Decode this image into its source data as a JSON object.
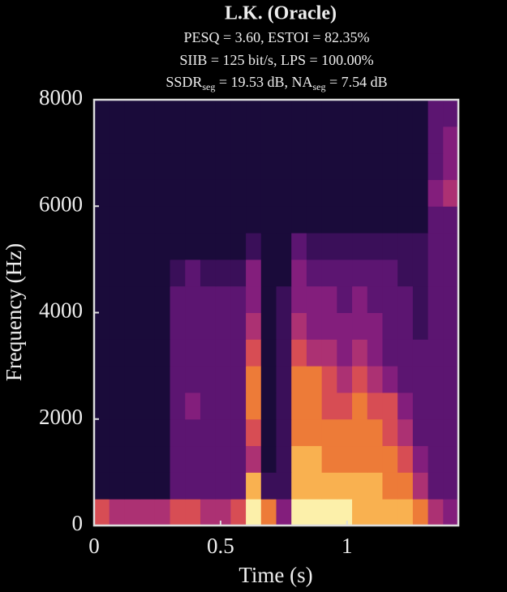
{
  "chart_data": {
    "type": "spectrogram",
    "title": "L.K.  (Oracle)",
    "subtitle_lines": [
      "PESQ  =  3.60,  ESTOI  =  82.35%",
      "SIIB  =  125  bit/s,  LPS  =  100.00%"
    ],
    "subtitle_parts": [
      "SSDR",
      "seg",
      "  =  19.53  dB,  NA",
      "seg",
      "  =  7.54  dB"
    ],
    "xlabel": "Time (s)",
    "ylabel": "Frequency (Hz)",
    "xlim": [
      0,
      1.44
    ],
    "ylim": [
      0,
      8000
    ],
    "xticks": [
      0,
      {
        "value": 0.5,
        "label": "0.5"
      },
      1
    ],
    "yticks": [
      0,
      2000,
      4000,
      6000,
      8000
    ],
    "xbins": [
      0,
      0.06,
      0.12,
      0.18,
      0.24,
      0.3,
      0.36,
      0.42,
      0.48,
      0.54,
      0.6,
      0.66,
      0.72,
      0.78,
      0.84,
      0.9,
      0.96,
      1.02,
      1.08,
      1.14,
      1.2,
      1.26,
      1.32,
      1.38,
      1.44
    ],
    "ybins": [
      0,
      500,
      1000,
      1500,
      2000,
      2500,
      3000,
      3500,
      4000,
      4500,
      5000,
      5500,
      6000,
      6500,
      7000,
      7500,
      8000
    ],
    "z": [
      [
        6,
        5,
        5,
        5,
        5,
        6,
        6,
        5,
        5,
        6,
        9,
        7,
        4,
        9,
        9,
        9,
        9,
        8,
        8,
        8,
        8,
        7,
        5,
        4
      ],
      [
        1,
        1,
        1,
        1,
        1,
        3,
        3,
        3,
        3,
        3,
        8,
        2,
        2,
        8,
        8,
        8,
        8,
        8,
        8,
        7,
        7,
        5,
        3,
        3
      ],
      [
        1,
        1,
        1,
        1,
        1,
        3,
        3,
        3,
        3,
        3,
        5,
        1,
        2,
        8,
        8,
        7,
        7,
        7,
        7,
        7,
        6,
        4,
        3,
        3
      ],
      [
        1,
        1,
        1,
        1,
        1,
        3,
        3,
        3,
        3,
        3,
        6,
        1,
        2,
        7,
        7,
        7,
        7,
        7,
        7,
        6,
        5,
        3,
        3,
        3
      ],
      [
        1,
        1,
        1,
        1,
        1,
        3,
        4,
        3,
        3,
        3,
        7,
        1,
        2,
        7,
        7,
        6,
        6,
        7,
        6,
        6,
        4,
        3,
        3,
        3
      ],
      [
        1,
        1,
        1,
        1,
        1,
        3,
        3,
        3,
        3,
        3,
        7,
        1,
        2,
        7,
        7,
        6,
        5,
        6,
        5,
        4,
        3,
        3,
        3,
        3
      ],
      [
        1,
        1,
        1,
        1,
        1,
        3,
        3,
        3,
        3,
        3,
        6,
        1,
        2,
        6,
        5,
        5,
        4,
        5,
        4,
        3,
        3,
        3,
        3,
        3
      ],
      [
        1,
        1,
        1,
        1,
        1,
        3,
        3,
        3,
        3,
        3,
        5,
        1,
        2,
        5,
        4,
        4,
        4,
        4,
        4,
        3,
        3,
        2,
        3,
        3
      ],
      [
        1,
        1,
        1,
        1,
        1,
        3,
        3,
        3,
        3,
        3,
        4,
        1,
        2,
        4,
        4,
        4,
        3,
        4,
        3,
        3,
        3,
        2,
        3,
        3
      ],
      [
        1,
        1,
        1,
        1,
        1,
        2,
        3,
        2,
        2,
        2,
        4,
        1,
        1,
        4,
        3,
        3,
        3,
        3,
        3,
        3,
        2,
        2,
        3,
        3
      ],
      [
        1,
        1,
        1,
        1,
        1,
        1,
        1,
        1,
        1,
        1,
        2,
        1,
        1,
        3,
        2,
        2,
        2,
        2,
        2,
        2,
        2,
        2,
        3,
        3
      ],
      [
        1,
        1,
        1,
        1,
        1,
        1,
        1,
        1,
        1,
        1,
        1,
        1,
        1,
        1,
        1,
        1,
        1,
        1,
        1,
        1,
        1,
        1,
        3,
        3
      ],
      [
        1,
        1,
        1,
        1,
        1,
        1,
        1,
        1,
        1,
        1,
        1,
        1,
        1,
        1,
        1,
        1,
        1,
        1,
        1,
        1,
        1,
        1,
        4,
        5
      ],
      [
        1,
        1,
        1,
        1,
        1,
        1,
        1,
        1,
        1,
        1,
        1,
        1,
        1,
        1,
        1,
        1,
        1,
        1,
        1,
        1,
        1,
        1,
        3,
        4
      ],
      [
        1,
        1,
        1,
        1,
        1,
        1,
        1,
        1,
        1,
        1,
        1,
        1,
        1,
        1,
        1,
        1,
        1,
        1,
        1,
        1,
        1,
        1,
        3,
        4
      ],
      [
        1,
        1,
        1,
        1,
        1,
        1,
        1,
        1,
        1,
        1,
        1,
        1,
        1,
        1,
        1,
        1,
        1,
        1,
        1,
        1,
        1,
        1,
        3,
        3
      ]
    ],
    "zlim": [
      0,
      9
    ]
  }
}
